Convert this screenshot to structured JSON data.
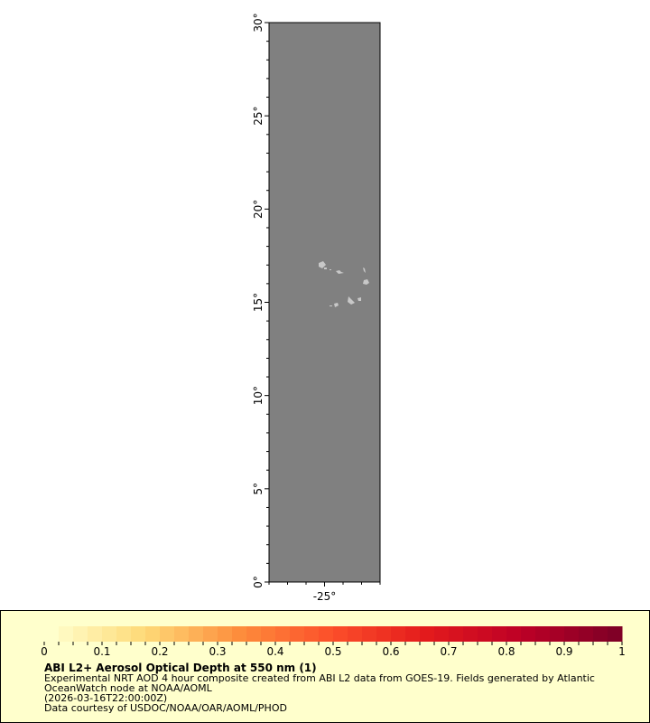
{
  "map": {
    "lat_range": [
      0,
      30
    ],
    "lon_range": [
      -28,
      -22
    ],
    "lat_labels": [
      "0°",
      "5°",
      "10°",
      "15°",
      "20°",
      "25°",
      "30°"
    ],
    "lon_labels": [
      "-25°"
    ],
    "ocean_color": "#808080",
    "land_color": "#c8c8c8"
  },
  "legend": {
    "title": "ABI L2+ Aerosol Optical Depth at 550 nm (1)",
    "line1": "Experimental NRT AOD 4 hour composite created from ABI L2 data from GOES-19. Fields generated by Atlantic",
    "line2": "OceanWatch node at NOAA/AOML",
    "line3": "(2026-03-16T22:00:00Z)",
    "line4": "Data courtesy of USDOC/NOAA/OAR/AOML/PHOD",
    "colorbar": {
      "range": [
        0,
        1
      ],
      "tick_labels": [
        "0",
        "0.1",
        "0.2",
        "0.3",
        "0.4",
        "0.5",
        "0.6",
        "0.7",
        "0.8",
        "0.9",
        "1"
      ],
      "colors": [
        "#ffffcc",
        "#fed976",
        "#fd8d3c",
        "#fc4e2a",
        "#e31a1c",
        "#bd0026",
        "#800026"
      ]
    }
  }
}
